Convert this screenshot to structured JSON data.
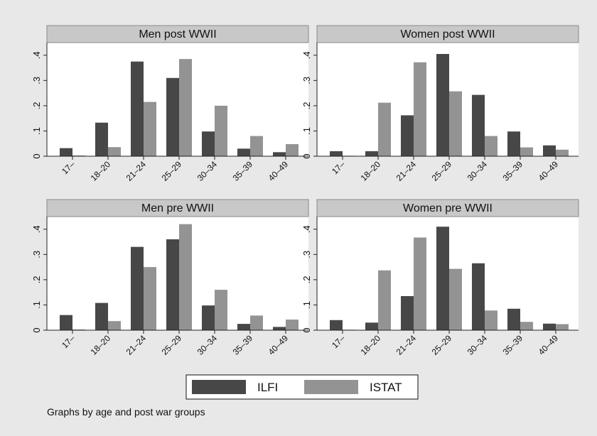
{
  "chart_data": [
    {
      "type": "bar",
      "title": "Men post WWII",
      "categories": [
        "17–",
        "18–20",
        "21–24",
        "25–29",
        "30–34",
        "35–39",
        "40–49"
      ],
      "series": [
        {
          "name": "ILFI",
          "values": [
            0.032,
            0.133,
            0.375,
            0.31,
            0.098,
            0.03,
            0.016
          ]
        },
        {
          "name": "ISTAT",
          "values": [
            0.003,
            0.036,
            0.215,
            0.385,
            0.2,
            0.08,
            0.048
          ]
        }
      ],
      "yticks": [
        ".4",
        ".3",
        ".2",
        ".1",
        "0"
      ],
      "ylim": [
        0,
        0.45
      ]
    },
    {
      "type": "bar",
      "title": "Women post WWII",
      "categories": [
        "17–",
        "18–20",
        "21–24",
        "25–29",
        "30–34",
        "35–39",
        "40–49"
      ],
      "series": [
        {
          "name": "ILFI",
          "values": [
            0.02,
            0.02,
            0.162,
            0.405,
            0.243,
            0.098,
            0.043
          ]
        },
        {
          "name": "ISTAT",
          "values": [
            0.002,
            0.212,
            0.372,
            0.257,
            0.08,
            0.035,
            0.026
          ]
        }
      ],
      "yticks": [
        ".4",
        ".3",
        ".2",
        ".1",
        "0"
      ],
      "ylim": [
        0,
        0.45
      ]
    },
    {
      "type": "bar",
      "title": "Men pre WWII",
      "categories": [
        "17–",
        "18–20",
        "21–24",
        "25–29",
        "30–34",
        "35–39",
        "40–49"
      ],
      "series": [
        {
          "name": "ILFI",
          "values": [
            0.06,
            0.108,
            0.33,
            0.36,
            0.098,
            0.025,
            0.013
          ]
        },
        {
          "name": "ISTAT",
          "values": [
            0.003,
            0.036,
            0.25,
            0.42,
            0.16,
            0.058,
            0.042
          ]
        }
      ],
      "yticks": [
        ".4",
        ".3",
        ".2",
        ".1",
        "0"
      ],
      "ylim": [
        0,
        0.45
      ]
    },
    {
      "type": "bar",
      "title": "Women pre WWII",
      "categories": [
        "17–",
        "18–20",
        "21–24",
        "25–29",
        "30–34",
        "35–39",
        "40–49"
      ],
      "series": [
        {
          "name": "ILFI",
          "values": [
            0.04,
            0.03,
            0.135,
            0.41,
            0.265,
            0.085,
            0.026
          ]
        },
        {
          "name": "ISTAT",
          "values": [
            0.002,
            0.237,
            0.367,
            0.243,
            0.078,
            0.033,
            0.024
          ]
        }
      ],
      "yticks": [
        ".4",
        ".3",
        ".2",
        ".1",
        "0"
      ],
      "ylim": [
        0,
        0.45
      ]
    }
  ],
  "legend": {
    "items": [
      {
        "label": "ILFI",
        "color": "#474747"
      },
      {
        "label": "ISTAT",
        "color": "#939393"
      }
    ]
  },
  "note": "Graphs by age and post war groups"
}
